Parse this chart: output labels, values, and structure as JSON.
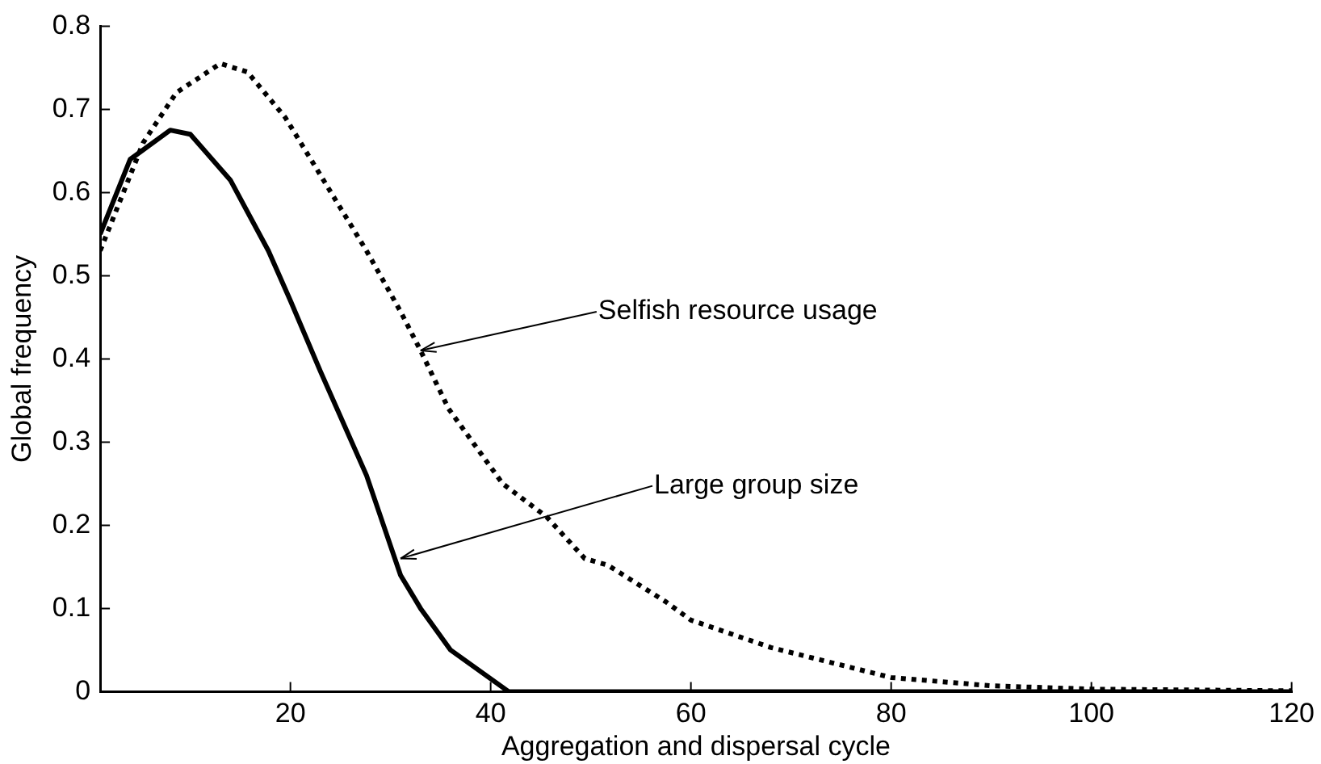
{
  "chart_data": {
    "type": "line",
    "xlabel": "Aggregation and dispersal cycle",
    "ylabel": "Global frequency",
    "xlim": [
      1,
      120
    ],
    "xticks": [
      20,
      40,
      60,
      80,
      100,
      120
    ],
    "ylim": [
      0,
      0.8
    ],
    "yticks": [
      0,
      0.1,
      0.2,
      0.3,
      0.4,
      0.5,
      0.6,
      0.7,
      0.8
    ],
    "grid": false,
    "legend": false,
    "marker": "none",
    "series": [
      {
        "color": "#000000",
        "line_style": "solid",
        "x": [
          1,
          4,
          8,
          10,
          14,
          17.8,
          20,
          23,
          27.6,
          31,
          33,
          36,
          41.8,
          60,
          80,
          100,
          120
        ],
        "values": [
          0.55,
          0.64,
          0.675,
          0.67,
          0.615,
          0.53,
          0.47,
          0.385,
          0.26,
          0.14,
          0.1,
          0.05,
          0,
          0,
          0,
          0,
          0
        ]
      },
      {
        "color": "#000000",
        "line_style": "dotted",
        "x": [
          1,
          5.3,
          8.6,
          13,
          15.7,
          19.5,
          23.3,
          27.6,
          31,
          33,
          35.8,
          41.2,
          45.6,
          49.4,
          51.7,
          57.5,
          60,
          68,
          80,
          90,
          100,
          120
        ],
        "values": [
          0.53,
          0.66,
          0.72,
          0.755,
          0.745,
          0.69,
          0.615,
          0.53,
          0.457,
          0.41,
          0.34,
          0.25,
          0.21,
          0.16,
          0.152,
          0.108,
          0.086,
          0.053,
          0.017,
          0.007,
          0.003,
          0.001
        ]
      }
    ],
    "annotations": [
      {
        "text": "Selfish resource usage",
        "x": 33,
        "y": 0.41
      },
      {
        "text": "Large group size",
        "x": 31,
        "y": 0.16
      }
    ]
  }
}
